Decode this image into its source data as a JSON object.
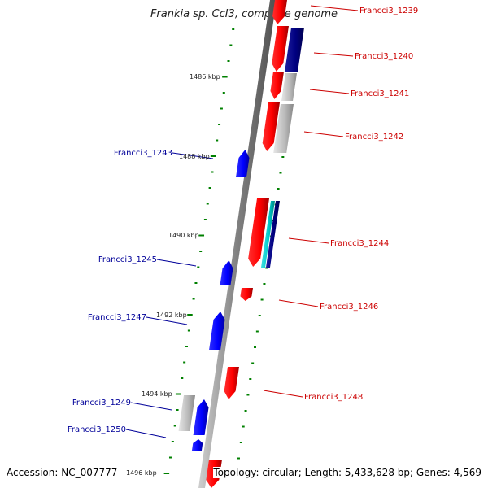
{
  "title": "Frankia sp. CcI3, complete genome",
  "footer": {
    "accession": "Accession: NC_007777",
    "topology": "Topology: circular; Length: 5,433,628 bp; Genes: 4,569"
  },
  "colors": {
    "forward": "#ff0000",
    "reverse": "#0000ff",
    "other": "#bbbbbb",
    "dark": "#000080",
    "teal": "#00cccc",
    "tick": "#008000",
    "backbone": "#808080",
    "right_label": "#cc0000",
    "left_label": "#000099"
  },
  "scale_labels": [
    "1486 kbp",
    "1488 kbp",
    "1490 kbp",
    "1492 kbp",
    "1494 kbp",
    "1496 kbp"
  ],
  "genes": [
    {
      "label": "Francci3_1239",
      "strand": "+"
    },
    {
      "label": "Francci3_1240",
      "strand": "+"
    },
    {
      "label": "Francci3_1241",
      "strand": "+"
    },
    {
      "label": "Francci3_1242",
      "strand": "+"
    },
    {
      "label": "Francci3_1243",
      "strand": "-"
    },
    {
      "label": "Francci3_1244",
      "strand": "+"
    },
    {
      "label": "Francci3_1245",
      "strand": "-"
    },
    {
      "label": "Francci3_1246",
      "strand": "+"
    },
    {
      "label": "Francci3_1247",
      "strand": "-"
    },
    {
      "label": "Francci3_1248",
      "strand": "+"
    },
    {
      "label": "Francci3_1249",
      "strand": "-"
    },
    {
      "label": "Francci3_1250",
      "strand": "-"
    }
  ]
}
